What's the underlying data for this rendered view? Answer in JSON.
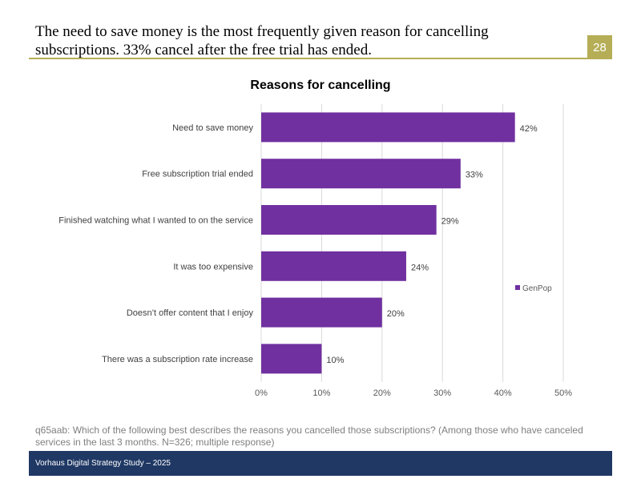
{
  "slide": {
    "title": "The need to save money is the most frequently given reason for cancelling subscriptions. 33% cancel after the free trial has ended.",
    "page_number": "28"
  },
  "colors": {
    "accent": "#b5ae56",
    "bar": "#7030a0",
    "footer": "#1f3864",
    "grid": "#d9d9d9"
  },
  "chart_data": {
    "type": "bar",
    "orientation": "horizontal",
    "title": "Reasons for cancelling",
    "categories": [
      "Need to save money",
      "Free subscription trial ended",
      "Finished watching what I wanted to on the service",
      "It was too expensive",
      "Doesn’t offer content that I enjoy",
      "There was a subscription rate increase"
    ],
    "series": [
      {
        "name": "GenPop",
        "values": [
          42,
          33,
          29,
          24,
          20,
          10
        ]
      }
    ],
    "value_labels": [
      "42%",
      "33%",
      "29%",
      "24%",
      "20%",
      "10%"
    ],
    "xlim": [
      0,
      50
    ],
    "xticks": [
      0,
      10,
      20,
      30,
      40,
      50
    ],
    "xtick_labels": [
      "0%",
      "10%",
      "20%",
      "30%",
      "40%",
      "50%"
    ],
    "legend_position": "right",
    "grid": true
  },
  "footnote": "q65aab: Which of the following best describes the reasons you cancelled those subscriptions? (Among those who have canceled services in the last 3 months. N=326; multiple response)",
  "footer": "Vorhaus Digital Strategy Study – 2025"
}
